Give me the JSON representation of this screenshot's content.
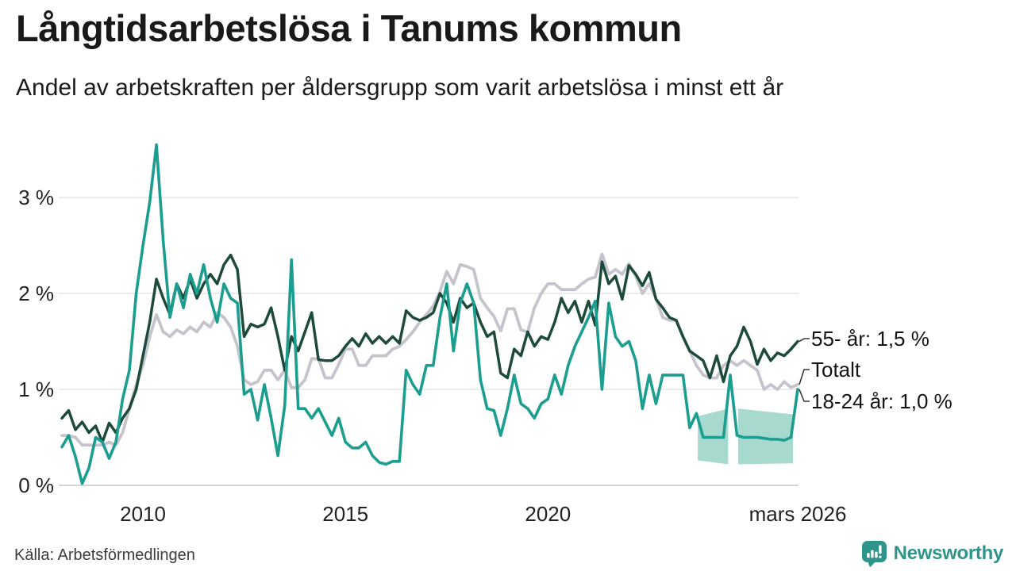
{
  "header": {
    "title": "Långtidsarbetslösa i Tanums kommun",
    "subtitle": "Andel av arbetskraften per åldersgrupp som varit arbetslösa i minst ett år"
  },
  "annotations": [
    {
      "label": "55- år: 1,5 %",
      "series": "55- år",
      "end_value": 1.5
    },
    {
      "label": "Totalt",
      "series": "Totalt",
      "end_value": 1.05
    },
    {
      "label": "18-24 år: 1,0 %",
      "series": "18-24 år",
      "end_value": 1.0
    }
  ],
  "footer": {
    "source": "Källa: Arbetsförmedlingen",
    "brand": "Newsworthy"
  },
  "icons": {
    "brand_icon": "newsworthy-speech-bubble-bar-chart"
  },
  "colors": {
    "accent_teal": "#1b9e8f",
    "dark_green": "#1e4a3c",
    "total_gray": "#c5c3cc",
    "band_teal": "#a7d9cf",
    "brand_teal": "#2f948a"
  },
  "chart_data": {
    "type": "line",
    "title": "Långtidsarbetslösa i Tanums kommun",
    "subtitle": "Andel av arbetskraften per åldersgrupp som varit arbetslösa i minst ett år",
    "xlabel": "",
    "ylabel": "",
    "unit": "% av arbetskraften",
    "x_range": [
      2008.0,
      2026.167
    ],
    "ylim": [
      0,
      3.6
    ],
    "grid": "horizontal-only",
    "legend_position": "end-of-line-labels",
    "x_start": 2008.0,
    "x_step_years": 0.16667,
    "y_ticks": [
      {
        "value": 0,
        "label": "0 %"
      },
      {
        "value": 1,
        "label": "1 %"
      },
      {
        "value": 2,
        "label": "2 %"
      },
      {
        "value": 3,
        "label": "3 %"
      }
    ],
    "x_ticks": [
      {
        "value": 2010,
        "label": "2010"
      },
      {
        "value": 2015,
        "label": "2015"
      },
      {
        "value": 2020,
        "label": "2020"
      },
      {
        "value": 2026.167,
        "label": "mars 2026"
      }
    ],
    "series": [
      {
        "name": "Totalt",
        "color": "#c5c3cc",
        "width": 3.8,
        "values": [
          0.52,
          0.52,
          0.5,
          0.42,
          0.42,
          0.42,
          0.42,
          0.45,
          0.42,
          0.55,
          0.8,
          1.05,
          1.25,
          1.55,
          1.78,
          1.6,
          1.55,
          1.62,
          1.58,
          1.65,
          1.6,
          1.7,
          1.65,
          1.8,
          1.75,
          1.65,
          1.45,
          1.1,
          1.05,
          1.08,
          1.2,
          1.2,
          1.1,
          1.2,
          1.02,
          1.02,
          1.1,
          1.32,
          1.32,
          1.12,
          1.12,
          1.26,
          1.42,
          1.42,
          1.25,
          1.25,
          1.35,
          1.35,
          1.35,
          1.42,
          1.45,
          1.52,
          1.6,
          1.7,
          1.78,
          1.87,
          2.02,
          2.23,
          2.1,
          2.3,
          2.28,
          2.25,
          1.95,
          1.85,
          1.76,
          1.61,
          1.84,
          1.84,
          1.62,
          1.6,
          1.85,
          2.0,
          2.1,
          2.1,
          2.04,
          2.04,
          2.04,
          2.1,
          2.15,
          2.17,
          2.41,
          2.2,
          2.25,
          2.2,
          2.31,
          2.18,
          2.0,
          2.1,
          1.95,
          1.75,
          1.72,
          1.72,
          1.55,
          1.4,
          1.25,
          1.15,
          1.12,
          1.12,
          1.25,
          1.3,
          1.25,
          1.3,
          1.25,
          1.2,
          1.0,
          1.05,
          1.0,
          1.08,
          1.02,
          1.05
        ]
      },
      {
        "name": "55- år",
        "color": "#1e4a3c",
        "width": 3.5,
        "values": [
          0.7,
          0.78,
          0.58,
          0.66,
          0.55,
          0.62,
          0.45,
          0.65,
          0.55,
          0.7,
          0.8,
          1.0,
          1.35,
          1.7,
          2.15,
          1.95,
          1.78,
          2.1,
          1.95,
          2.15,
          1.95,
          2.1,
          2.2,
          2.1,
          2.3,
          2.4,
          2.25,
          1.55,
          1.68,
          1.65,
          1.68,
          1.85,
          1.55,
          1.2,
          1.55,
          1.4,
          1.6,
          1.8,
          1.31,
          1.3,
          1.3,
          1.35,
          1.45,
          1.53,
          1.45,
          1.58,
          1.48,
          1.55,
          1.48,
          1.55,
          1.48,
          1.82,
          1.75,
          1.72,
          1.75,
          1.8,
          2.0,
          1.9,
          1.7,
          1.95,
          1.85,
          1.9,
          1.7,
          1.55,
          1.6,
          1.17,
          1.12,
          1.42,
          1.35,
          1.6,
          1.45,
          1.55,
          1.52,
          1.7,
          1.95,
          1.8,
          1.92,
          1.7,
          1.92,
          1.67,
          2.33,
          2.1,
          2.18,
          1.94,
          2.29,
          2.2,
          2.08,
          2.22,
          1.94,
          1.85,
          1.75,
          1.72,
          1.55,
          1.4,
          1.35,
          1.3,
          1.12,
          1.35,
          1.08,
          1.35,
          1.45,
          1.65,
          1.5,
          1.26,
          1.42,
          1.3,
          1.38,
          1.35,
          1.42,
          1.5
        ]
      },
      {
        "name": "18-24 år",
        "color": "#1b9e8f",
        "width": 3.6,
        "values": [
          0.4,
          0.52,
          0.3,
          0.02,
          0.18,
          0.5,
          0.45,
          0.28,
          0.45,
          0.9,
          1.2,
          2.0,
          2.5,
          2.95,
          3.55,
          2.55,
          1.75,
          2.1,
          1.85,
          2.2,
          2.0,
          2.3,
          1.95,
          1.7,
          2.1,
          1.95,
          1.9,
          0.95,
          1.0,
          0.68,
          1.05,
          0.7,
          0.31,
          0.83,
          2.35,
          0.8,
          0.8,
          0.7,
          0.8,
          0.66,
          0.52,
          0.7,
          0.45,
          0.39,
          0.39,
          0.45,
          0.31,
          0.24,
          0.22,
          0.25,
          0.25,
          1.2,
          1.05,
          0.95,
          1.25,
          1.25,
          1.75,
          2.1,
          1.4,
          1.9,
          2.1,
          1.9,
          1.1,
          0.8,
          0.78,
          0.52,
          0.8,
          1.15,
          0.85,
          0.8,
          0.7,
          0.85,
          0.9,
          1.15,
          0.95,
          1.25,
          1.45,
          1.6,
          1.75,
          1.92,
          1.0,
          1.9,
          1.55,
          1.45,
          1.5,
          1.3,
          0.8,
          1.15,
          0.85,
          1.15,
          1.15,
          1.15,
          1.15,
          0.6,
          0.75,
          0.5,
          0.5,
          0.5,
          0.5,
          1.15,
          0.52,
          0.5,
          0.5,
          0.5,
          0.49,
          0.48,
          0.48,
          0.47,
          0.5,
          1.0
        ]
      }
    ],
    "confidence_band": {
      "series": "18-24 år",
      "color": "#a7d9cf",
      "segments": [
        {
          "x": [
            2023.7,
            2024.45
          ],
          "top": [
            0.72,
            0.8
          ],
          "bottom": [
            0.26,
            0.22
          ]
        },
        {
          "x": [
            2024.7,
            2026.05
          ],
          "top": [
            0.8,
            0.74
          ],
          "bottom": [
            0.22,
            0.23
          ]
        }
      ]
    }
  }
}
